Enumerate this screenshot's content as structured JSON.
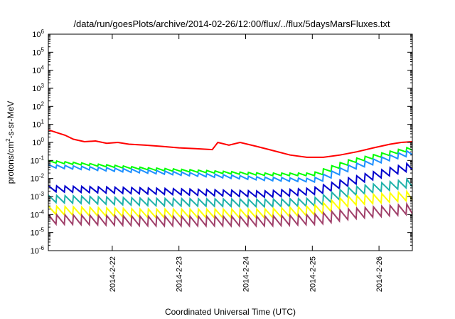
{
  "chart_data": {
    "type": "line",
    "title": "/data/run/goesPlots/archive/2014-02-26/12:00/flux/../flux/5daysMarsFluxes.txt",
    "xlabel": "Coordinated Universal Time (UTC)",
    "ylabel": "protons/cm²-s-sr-MeV",
    "ylabel_parts": {
      "pre": "protons/cm",
      "sup": "2",
      "post": "-s-sr-MeV"
    },
    "y_scale": "log",
    "ylim": [
      1e-06,
      1000000.0
    ],
    "y_ticks": [
      {
        "base": "10",
        "exp": "-6"
      },
      {
        "base": "10",
        "exp": "-5"
      },
      {
        "base": "10",
        "exp": "-4"
      },
      {
        "base": "10",
        "exp": "-3"
      },
      {
        "base": "10",
        "exp": "-2"
      },
      {
        "base": "10",
        "exp": "-1"
      },
      {
        "base": "10",
        "exp": "0"
      },
      {
        "base": "10",
        "exp": "1"
      },
      {
        "base": "10",
        "exp": "2"
      },
      {
        "base": "10",
        "exp": "3"
      },
      {
        "base": "10",
        "exp": "4"
      },
      {
        "base": "10",
        "exp": "5"
      },
      {
        "base": "10",
        "exp": "6"
      }
    ],
    "xlim": [
      "2014-02-21T01:00",
      "2014-02-26T12:00"
    ],
    "x_ticks": [
      {
        "label": "2014-2-22",
        "t": "2014-02-22T00:00"
      },
      {
        "label": "2014-2-23",
        "t": "2014-02-23T00:00"
      },
      {
        "label": "2014-2-24",
        "t": "2014-02-24T00:00"
      },
      {
        "label": "2014-2-25",
        "t": "2014-02-25T00:00"
      },
      {
        "label": "2014-2-26",
        "t": "2014-02-26T00:00"
      }
    ],
    "grid": false,
    "legend": "none",
    "series": [
      {
        "color": "#ff0000",
        "style": "smooth",
        "points": [
          [
            "2014-02-21T01:00",
            5
          ],
          [
            "2014-02-21T04:00",
            3.5
          ],
          [
            "2014-02-21T07:00",
            2.5
          ],
          [
            "2014-02-21T10:00",
            1.5
          ],
          [
            "2014-02-21T14:00",
            1.1
          ],
          [
            "2014-02-21T18:00",
            1.2
          ],
          [
            "2014-02-21T22:00",
            0.9
          ],
          [
            "2014-02-22T02:00",
            1.0
          ],
          [
            "2014-02-22T06:00",
            0.8
          ],
          [
            "2014-02-22T12:00",
            0.7
          ],
          [
            "2014-02-22T18:00",
            0.6
          ],
          [
            "2014-02-23T00:00",
            0.5
          ],
          [
            "2014-02-23T06:00",
            0.45
          ],
          [
            "2014-02-23T12:00",
            0.4
          ],
          [
            "2014-02-23T14:00",
            1.0
          ],
          [
            "2014-02-23T18:00",
            0.7
          ],
          [
            "2014-02-23T22:00",
            1.0
          ],
          [
            "2014-02-24T04:00",
            0.6
          ],
          [
            "2014-02-24T10:00",
            0.35
          ],
          [
            "2014-02-24T16:00",
            0.2
          ],
          [
            "2014-02-24T22:00",
            0.15
          ],
          [
            "2014-02-25T04:00",
            0.15
          ],
          [
            "2014-02-25T10:00",
            0.2
          ],
          [
            "2014-02-25T16:00",
            0.3
          ],
          [
            "2014-02-25T22:00",
            0.5
          ],
          [
            "2014-02-26T04:00",
            0.8
          ],
          [
            "2014-02-26T08:00",
            1.0
          ],
          [
            "2014-02-26T12:00",
            1.1
          ]
        ]
      },
      {
        "color": "#00ff00",
        "style": "sawtooth",
        "points": [
          [
            "2014-02-21T01:00",
            0.1
          ],
          [
            "2014-02-22T12:00",
            0.04
          ],
          [
            "2014-02-24T06:00",
            0.02
          ],
          [
            "2014-02-25T00:00",
            0.02
          ],
          [
            "2014-02-25T12:00",
            0.1
          ],
          [
            "2014-02-26T12:00",
            0.6
          ]
        ],
        "dip": 1.4
      },
      {
        "color": "#1e90ff",
        "style": "sawtooth",
        "points": [
          [
            "2014-02-21T01:00",
            0.06
          ],
          [
            "2014-02-22T12:00",
            0.03
          ],
          [
            "2014-02-24T06:00",
            0.012
          ],
          [
            "2014-02-25T00:00",
            0.01
          ],
          [
            "2014-02-25T12:00",
            0.05
          ],
          [
            "2014-02-26T12:00",
            0.4
          ]
        ],
        "dip": 1.6
      },
      {
        "color": "#0000cd",
        "style": "sawtooth",
        "points": [
          [
            "2014-02-21T01:00",
            0.004
          ],
          [
            "2014-02-22T12:00",
            0.003
          ],
          [
            "2014-02-24T06:00",
            0.002
          ],
          [
            "2014-02-25T00:00",
            0.003
          ],
          [
            "2014-02-25T12:00",
            0.01
          ],
          [
            "2014-02-26T12:00",
            0.08
          ]
        ],
        "dip": 2.2
      },
      {
        "color": "#20b2aa",
        "style": "sawtooth",
        "points": [
          [
            "2014-02-21T01:00",
            0.0012
          ],
          [
            "2014-02-22T12:00",
            0.0008
          ],
          [
            "2014-02-24T06:00",
            0.0007
          ],
          [
            "2014-02-25T00:00",
            0.0008
          ],
          [
            "2014-02-25T12:00",
            0.003
          ],
          [
            "2014-02-26T12:00",
            0.01
          ]
        ],
        "dip": 2.6
      },
      {
        "color": "#ffff00",
        "style": "sawtooth",
        "points": [
          [
            "2014-02-21T01:00",
            0.0003
          ],
          [
            "2014-02-22T12:00",
            0.0002
          ],
          [
            "2014-02-24T06:00",
            0.0002
          ],
          [
            "2014-02-25T00:00",
            0.0003
          ],
          [
            "2014-02-25T12:00",
            0.001
          ],
          [
            "2014-02-26T12:00",
            0.002
          ]
        ],
        "dip": 3.0
      },
      {
        "color": "#a0406a",
        "style": "sawtooth",
        "points": [
          [
            "2014-02-21T01:00",
            0.0001
          ],
          [
            "2014-02-22T12:00",
            8e-05
          ],
          [
            "2014-02-24T06:00",
            8e-05
          ],
          [
            "2014-02-25T00:00",
            0.0001
          ],
          [
            "2014-02-25T12:00",
            0.0002
          ],
          [
            "2014-02-26T12:00",
            0.0004
          ]
        ],
        "dip": 3.4
      }
    ]
  }
}
